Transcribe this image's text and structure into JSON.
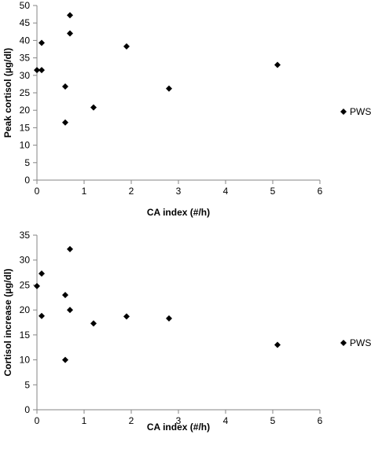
{
  "chart_data": [
    {
      "type": "scatter",
      "xlabel": "CA index (#/h)",
      "ylabel": "Peak cortisol (µg/dl)",
      "xlim": [
        0,
        6
      ],
      "ylim": [
        0,
        50
      ],
      "xticks": [
        "0",
        "1",
        "2",
        "3",
        "4",
        "5",
        "6"
      ],
      "yticks": [
        "0",
        "5",
        "10",
        "15",
        "20",
        "25",
        "30",
        "35",
        "40",
        "45",
        "50"
      ],
      "legend_position": "right",
      "marker": "diamond",
      "marker_color": "#000000",
      "series": [
        {
          "name": "PWS",
          "points": [
            {
              "x": 0.0,
              "y": 31.5
            },
            {
              "x": 0.1,
              "y": 31.5
            },
            {
              "x": 0.1,
              "y": 39.3
            },
            {
              "x": 0.6,
              "y": 26.8
            },
            {
              "x": 0.6,
              "y": 16.5
            },
            {
              "x": 0.7,
              "y": 47.2
            },
            {
              "x": 0.7,
              "y": 42.0
            },
            {
              "x": 1.2,
              "y": 20.8
            },
            {
              "x": 1.9,
              "y": 38.3
            },
            {
              "x": 2.8,
              "y": 26.2
            },
            {
              "x": 5.1,
              "y": 33.0
            }
          ]
        }
      ]
    },
    {
      "type": "scatter",
      "xlabel": "CA index (#/h)",
      "ylabel": "Cortisol increase (µg/dl)",
      "xlim": [
        0,
        6
      ],
      "ylim": [
        0,
        35
      ],
      "xticks": [
        "0",
        "1",
        "2",
        "3",
        "4",
        "5",
        "6"
      ],
      "yticks": [
        "0",
        "5",
        "10",
        "15",
        "20",
        "25",
        "30",
        "35"
      ],
      "legend_position": "right",
      "marker": "diamond",
      "marker_color": "#000000",
      "series": [
        {
          "name": "PWS",
          "points": [
            {
              "x": 0.0,
              "y": 24.8
            },
            {
              "x": 0.1,
              "y": 27.3
            },
            {
              "x": 0.1,
              "y": 18.8
            },
            {
              "x": 0.6,
              "y": 23.0
            },
            {
              "x": 0.6,
              "y": 10.0
            },
            {
              "x": 0.7,
              "y": 32.2
            },
            {
              "x": 0.7,
              "y": 20.0
            },
            {
              "x": 1.2,
              "y": 17.3
            },
            {
              "x": 1.9,
              "y": 18.7
            },
            {
              "x": 2.8,
              "y": 18.3
            },
            {
              "x": 5.1,
              "y": 13.0
            }
          ]
        }
      ]
    }
  ]
}
